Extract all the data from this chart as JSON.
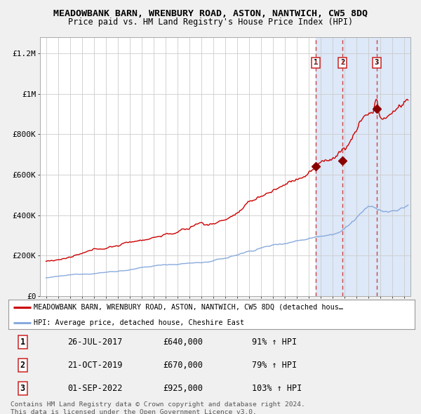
{
  "title": "MEADOWBANK BARN, WRENBURY ROAD, ASTON, NANTWICH, CW5 8DQ",
  "subtitle": "Price paid vs. HM Land Registry's House Price Index (HPI)",
  "title_fontsize": 9.5,
  "subtitle_fontsize": 8.5,
  "xlim": [
    1994.5,
    2025.5
  ],
  "ylim": [
    0,
    1280000
  ],
  "yticks": [
    0,
    200000,
    400000,
    600000,
    800000,
    1000000,
    1200000
  ],
  "ytick_labels": [
    "£0",
    "£200K",
    "£400K",
    "£600K",
    "£800K",
    "£1M",
    "£1.2M"
  ],
  "bg_color": "#f0f0f0",
  "plot_bg_color": "#ffffff",
  "grid_color": "#cccccc",
  "red_line_color": "#cc0000",
  "blue_line_color": "#88aadd",
  "sale_marker_color": "#880000",
  "sale_dates": [
    2017.57,
    2019.81,
    2022.67
  ],
  "sale_prices": [
    640000,
    670000,
    925000
  ],
  "sale_labels": [
    "1",
    "2",
    "3"
  ],
  "dashed_line_color": "#cc4444",
  "shade_color": "#dde8f8",
  "legend_items": [
    "MEADOWBANK BARN, WRENBURY ROAD, ASTON, NANTWICH, CW5 8DQ (detached hous…",
    "HPI: Average price, detached house, Cheshire East"
  ],
  "table_data": [
    [
      "1",
      "26-JUL-2017",
      "£640,000",
      "91% ↑ HPI"
    ],
    [
      "2",
      "21-OCT-2019",
      "£670,000",
      "79% ↑ HPI"
    ],
    [
      "3",
      "01-SEP-2022",
      "£925,000",
      "103% ↑ HPI"
    ]
  ],
  "footer": "Contains HM Land Registry data © Crown copyright and database right 2024.\nThis data is licensed under the Open Government Licence v3.0."
}
